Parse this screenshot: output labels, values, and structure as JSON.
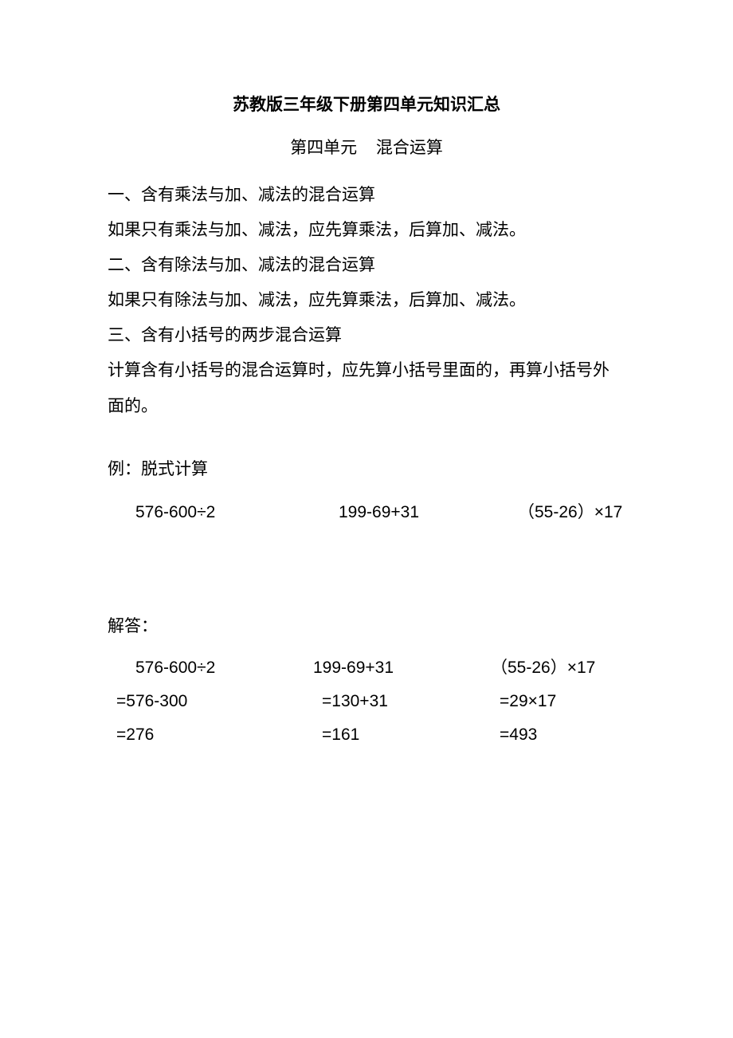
{
  "title": "苏教版三年级下册第四单元知识汇总",
  "subtitle": "第四单元 混合运算",
  "section1": {
    "heading": "一、含有乘法与加、减法的混合运算",
    "body": "如果只有乘法与加、减法，应先算乘法，后算加、减法。"
  },
  "section2": {
    "heading": "二、含有除法与加、减法的混合运算",
    "body": "如果只有除法与加、减法，应先算乘法，后算加、减法。"
  },
  "section3": {
    "heading": "三、含有小括号的两步混合运算",
    "body": "计算含有小括号的混合运算时，应先算小括号里面的，再算小括号外面的。"
  },
  "example": {
    "label": "例：脱式计算",
    "problems": {
      "p1": "576-600÷2",
      "p2": "199-69+31",
      "p3": "（55-26）×17"
    }
  },
  "answer": {
    "label": "解答：",
    "col1": {
      "line1": "576-600÷2",
      "line2": "=576-300",
      "line3": "=276"
    },
    "col2": {
      "line1": "199-69+31",
      "line2": "=130+31",
      "line3": "=161"
    },
    "col3": {
      "line1": "（55-26）×17",
      "line2": "=29×17",
      "line3": "=493"
    }
  },
  "colors": {
    "text": "#000000",
    "background": "#ffffff"
  },
  "typography": {
    "title_fontsize": 21,
    "body_fontsize": 21,
    "title_weight": "bold",
    "body_weight": "normal",
    "font_family": "Microsoft YaHei"
  }
}
